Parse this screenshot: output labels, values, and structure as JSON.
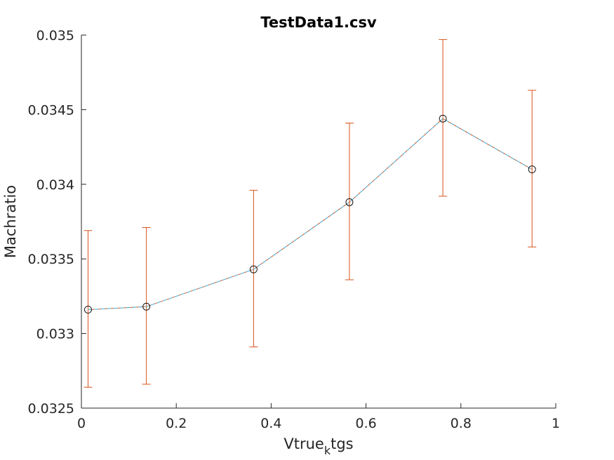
{
  "chart_data": {
    "type": "line",
    "title": "TestData1.csv",
    "xlabel": "Vtrue",
    "xlabel_subscript": "k",
    "xlabel_suffix": "tgs",
    "ylabel": "Machratio",
    "xlim": [
      0,
      1
    ],
    "ylim": [
      0.0325,
      0.035
    ],
    "xticks": [
      0,
      0.2,
      0.4,
      0.6,
      0.8,
      1
    ],
    "xtick_labels": [
      "0",
      "0.2",
      "0.4",
      "0.6",
      "0.8",
      "1"
    ],
    "yticks": [
      0.0325,
      0.033,
      0.0335,
      0.034,
      0.0345,
      0.035
    ],
    "ytick_labels": [
      "0.0325",
      "0.033",
      "0.0335",
      "0.034",
      "0.0345",
      "0.035"
    ],
    "grid": false,
    "x": [
      0.014,
      0.137,
      0.363,
      0.565,
      0.762,
      0.95
    ],
    "series": [
      {
        "values": [
          0.03316,
          0.03318,
          0.03343,
          0.03388,
          0.03444,
          0.0341
        ],
        "error_low": [
          0.03264,
          0.03266,
          0.03291,
          0.03336,
          0.03392,
          0.03358
        ],
        "error_high": [
          0.03369,
          0.03371,
          0.03396,
          0.03441,
          0.03497,
          0.03463
        ],
        "color": "#d95319",
        "marker": "none"
      },
      {
        "values": [
          0.03316,
          0.03318,
          0.03343,
          0.03388,
          0.03444,
          0.0341
        ],
        "color": "#4dbeee",
        "marker": "circle",
        "marker_color": "#000000"
      }
    ],
    "colors": {
      "axis": "#262626",
      "errorbar": "#d95319",
      "line": "#4dbeee",
      "marker": "#000000"
    }
  }
}
